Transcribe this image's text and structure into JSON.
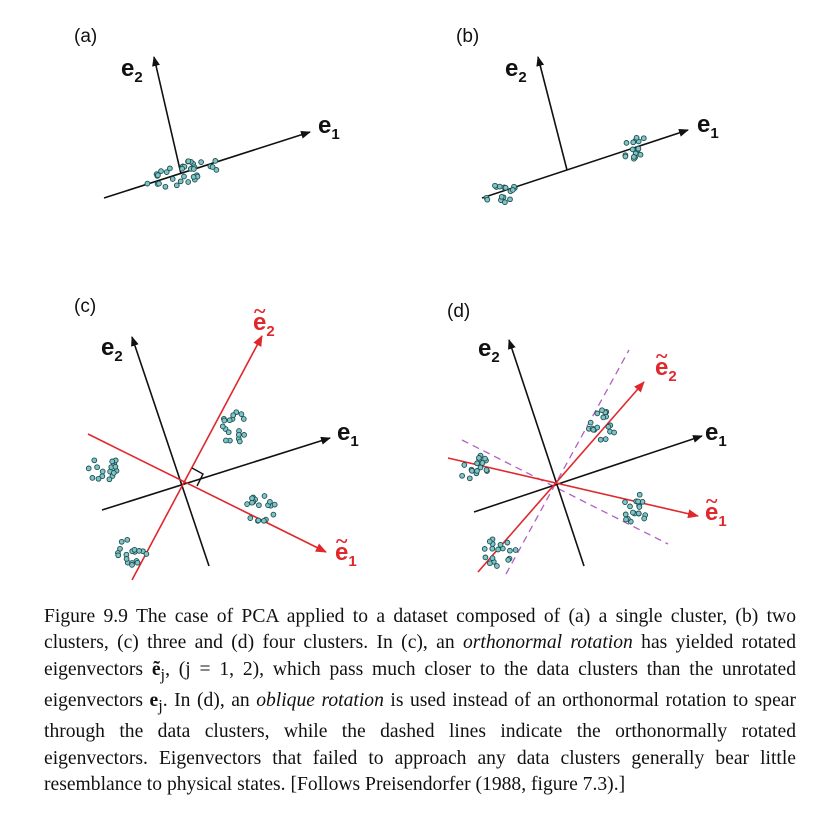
{
  "panels": {
    "a": {
      "label": "(a)",
      "e1": "e",
      "e1_sub": "1",
      "e2": "e",
      "e2_sub": "2"
    },
    "b": {
      "label": "(b)",
      "e1": "e",
      "e1_sub": "1",
      "e2": "e",
      "e2_sub": "2"
    },
    "c": {
      "label": "(c)",
      "e1": "e",
      "e1_sub": "1",
      "e2": "e",
      "e2_sub": "2",
      "re1": "e",
      "re1_sub": "1",
      "re2": "e",
      "re2_sub": "2",
      "tilde": "~"
    },
    "d": {
      "label": "(d)",
      "e1": "e",
      "e1_sub": "1",
      "e2": "e",
      "e2_sub": "2",
      "re1": "e",
      "re1_sub": "1",
      "re2": "e",
      "re2_sub": "2",
      "tilde": "~"
    }
  },
  "colors": {
    "axis": "#111111",
    "rotated": "#e0282c",
    "dashed": "#b061c2",
    "dot_fill": "#7fc4c6",
    "dot_stroke": "#1d4d4f"
  },
  "caption": {
    "p1": "Figure 9.9 The case of PCA applied to a dataset composed of (a) a single cluster, (b) two clusters, (c) three and (d) four clusters. In (c), an ",
    "italic1": "orthonormal rotation",
    "p2": " has yielded rotated eigenvectors ",
    "math1": "ẽ",
    "math1_sub": "j",
    "p3": ", (j = 1, 2), which pass much closer to the data clusters than the unrotated eigenvectors ",
    "math2": "e",
    "math2_sub": "j",
    "p4": ". In (d), an ",
    "italic2": "oblique rotation",
    "p5": " is used instead of an orthonormal rotation to spear through the data clusters, while the dashed lines indicate the orthonormally rotated eigenvectors. Eigenvectors that failed to approach any data clusters generally bear little resemblance to physical states. [Follows Preisendorfer (1988, figure 7.3).]"
  }
}
